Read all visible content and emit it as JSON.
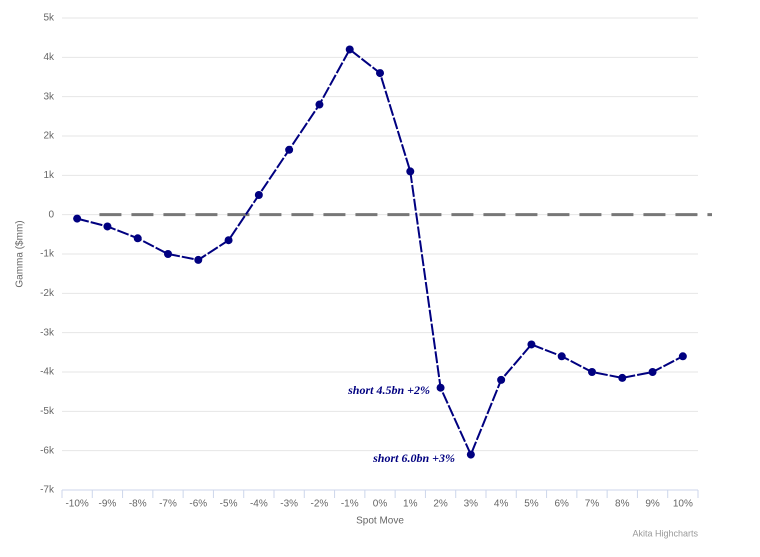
{
  "chart_data": {
    "type": "line",
    "y_axis_title": "Gamma ($mm)",
    "x_axis_title": "Spot Move",
    "credits": "Akita Highcharts",
    "categories": [
      "-10%",
      "-9%",
      "-8%",
      "-7%",
      "-6%",
      "-5%",
      "-4%",
      "-3%",
      "-2%",
      "-1%",
      "0%",
      "1%",
      "2%",
      "3%",
      "4%",
      "5%",
      "6%",
      "7%",
      "8%",
      "9%",
      "10%"
    ],
    "series": [
      {
        "color": "#000080",
        "values": [
          -100,
          -300,
          -600,
          -1000,
          -1150,
          -650,
          500,
          1650,
          2800,
          4200,
          3600,
          1100,
          -4400,
          -6100,
          -4200,
          -3300,
          -3600,
          -4000,
          -4150,
          -4000,
          -3600
        ]
      }
    ],
    "ylim": [
      -7000,
      5000
    ],
    "yticks": [
      {
        "value": -7000,
        "label": "-7k"
      },
      {
        "value": -6000,
        "label": "-6k"
      },
      {
        "value": -5000,
        "label": "-5k"
      },
      {
        "value": -4000,
        "label": "-4k"
      },
      {
        "value": -3000,
        "label": "-3k"
      },
      {
        "value": -2000,
        "label": "-2k"
      },
      {
        "value": -1000,
        "label": "-1k"
      },
      0,
      {
        "value": 1000,
        "label": "1k"
      },
      {
        "value": 2000,
        "label": "2k"
      },
      {
        "value": 3000,
        "label": "3k"
      },
      {
        "value": 4000,
        "label": "4k"
      },
      {
        "value": 5000,
        "label": "5k"
      }
    ],
    "grid": true,
    "plot_line": {
      "value": 0,
      "color": "#777777"
    },
    "annotations": [
      "short 4.5bn +2%",
      "short 6.0bn +3%"
    ]
  }
}
